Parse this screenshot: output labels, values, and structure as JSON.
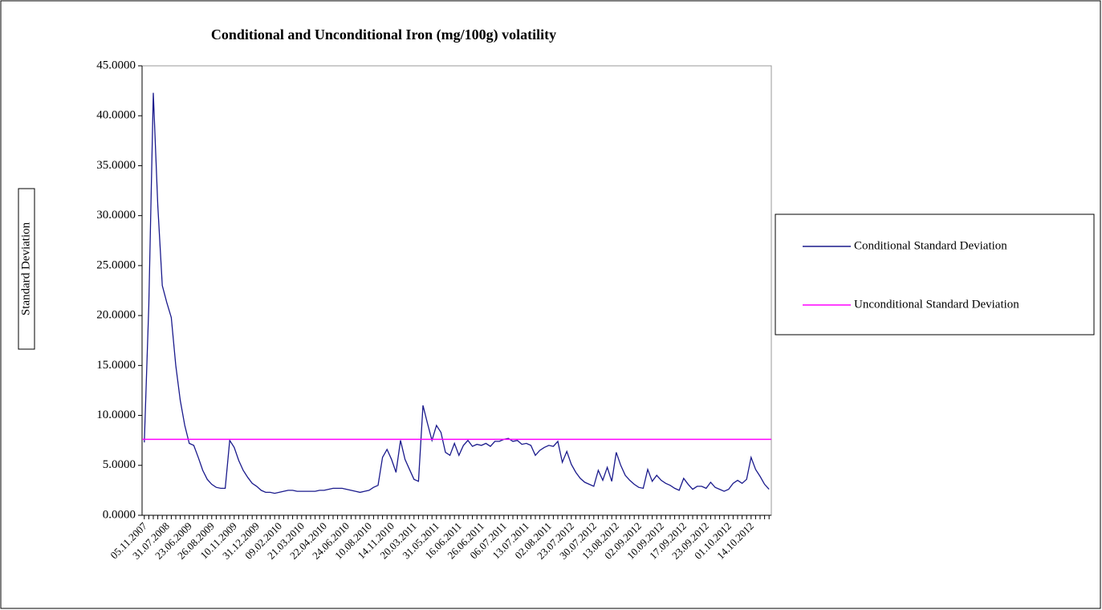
{
  "chart_data": {
    "type": "line",
    "title": "Conditional  and Unconditional  Iron  (mg/100g)  volatility",
    "y_label": "Standard Deviation",
    "categories": [
      "05.11.2007",
      null,
      null,
      null,
      null,
      "31.07.2008",
      null,
      null,
      null,
      null,
      "23.06.2009",
      null,
      null,
      null,
      null,
      "26.08.2009",
      null,
      null,
      null,
      null,
      "10.11.2009",
      null,
      null,
      null,
      null,
      "31.12.2009",
      null,
      null,
      null,
      null,
      "09.02.2010",
      null,
      null,
      null,
      null,
      "21.03.2010",
      null,
      null,
      null,
      null,
      "22.04.2010",
      null,
      null,
      null,
      null,
      "24.06.2010",
      null,
      null,
      null,
      null,
      "10.08.2010",
      null,
      null,
      null,
      null,
      "14.11.2010",
      null,
      null,
      null,
      null,
      "20.03.2011",
      null,
      null,
      null,
      null,
      "31.05.2011",
      null,
      null,
      null,
      null,
      "16.06.2011",
      null,
      null,
      null,
      null,
      "26.06.2011",
      null,
      null,
      null,
      null,
      "06.07.2011",
      null,
      null,
      null,
      null,
      "13.07.2011",
      null,
      null,
      null,
      null,
      "02.08.2011",
      null,
      null,
      null,
      null,
      "23.07.2012",
      null,
      null,
      null,
      null,
      "30.07.2012",
      null,
      null,
      null,
      null,
      "13.08.2012",
      null,
      null,
      null,
      null,
      "02.09.2012",
      null,
      null,
      null,
      null,
      "10.09.2012",
      null,
      null,
      null,
      null,
      "17.09.2012",
      null,
      null,
      null,
      null,
      "23.09.2012",
      null,
      null,
      null,
      null,
      "01.10.2012",
      null,
      null,
      null,
      null,
      "14.10.2012",
      null,
      null,
      null,
      null
    ],
    "series": [
      {
        "name": "Conditional Standard Deviation",
        "color": "#1a1a8c",
        "values": [
          7.3,
          21,
          42.3,
          31,
          23,
          21.3,
          19.8,
          15,
          11.5,
          9,
          7.2,
          7,
          5.8,
          4.5,
          3.6,
          3.1,
          2.8,
          2.7,
          2.7,
          7.5,
          6.8,
          5.5,
          4.5,
          3.8,
          3.2,
          2.9,
          2.5,
          2.3,
          2.3,
          2.2,
          2.3,
          2.4,
          2.5,
          2.5,
          2.4,
          2.4,
          2.4,
          2.4,
          2.4,
          2.5,
          2.5,
          2.6,
          2.7,
          2.7,
          2.7,
          2.6,
          2.5,
          2.4,
          2.3,
          2.4,
          2.5,
          2.8,
          3,
          5.8,
          6.6,
          5.6,
          4.3,
          7.5,
          5.6,
          4.6,
          3.6,
          3.4,
          11,
          9.2,
          7.5,
          9,
          8.3,
          6.3,
          6,
          7.2,
          6,
          7,
          7.5,
          6.9,
          7.1,
          7,
          7.2,
          6.9,
          7.4,
          7.4,
          7.6,
          7.7,
          7.4,
          7.5,
          7.1,
          7.2,
          7,
          6,
          6.5,
          6.8,
          7,
          6.9,
          7.4,
          5.3,
          6.4,
          5.1,
          4.3,
          3.7,
          3.3,
          3.1,
          2.9,
          4.5,
          3.5,
          4.8,
          3.4,
          6.3,
          5,
          4,
          3.5,
          3.1,
          2.8,
          2.7,
          4.6,
          3.4,
          4,
          3.5,
          3.2,
          3,
          2.7,
          2.5,
          3.7,
          3.1,
          2.6,
          2.9,
          2.9,
          2.7,
          3.3,
          2.8,
          2.6,
          2.4,
          2.6,
          3.2,
          3.5,
          3.2,
          3.6,
          5.8,
          4.6,
          3.9,
          3.1,
          2.6
        ]
      },
      {
        "name": "Unconditional Standard Deviation",
        "color": "#ff00ff",
        "value": 7.6
      }
    ],
    "ylim": [
      0,
      45
    ],
    "yticks": [
      {
        "value": 0,
        "label": "0.0000"
      },
      {
        "value": 5,
        "label": "5.0000"
      },
      {
        "value": 10,
        "label": "10.0000"
      },
      {
        "value": 15,
        "label": "15.0000"
      },
      {
        "value": 20,
        "label": "20.0000"
      },
      {
        "value": 25,
        "label": "25.0000"
      },
      {
        "value": 30,
        "label": "30.0000"
      },
      {
        "value": 35,
        "label": "35.0000"
      },
      {
        "value": 40,
        "label": "40.0000"
      },
      {
        "value": 45,
        "label": "45.0000"
      }
    ],
    "grid": false,
    "legend": "right"
  }
}
